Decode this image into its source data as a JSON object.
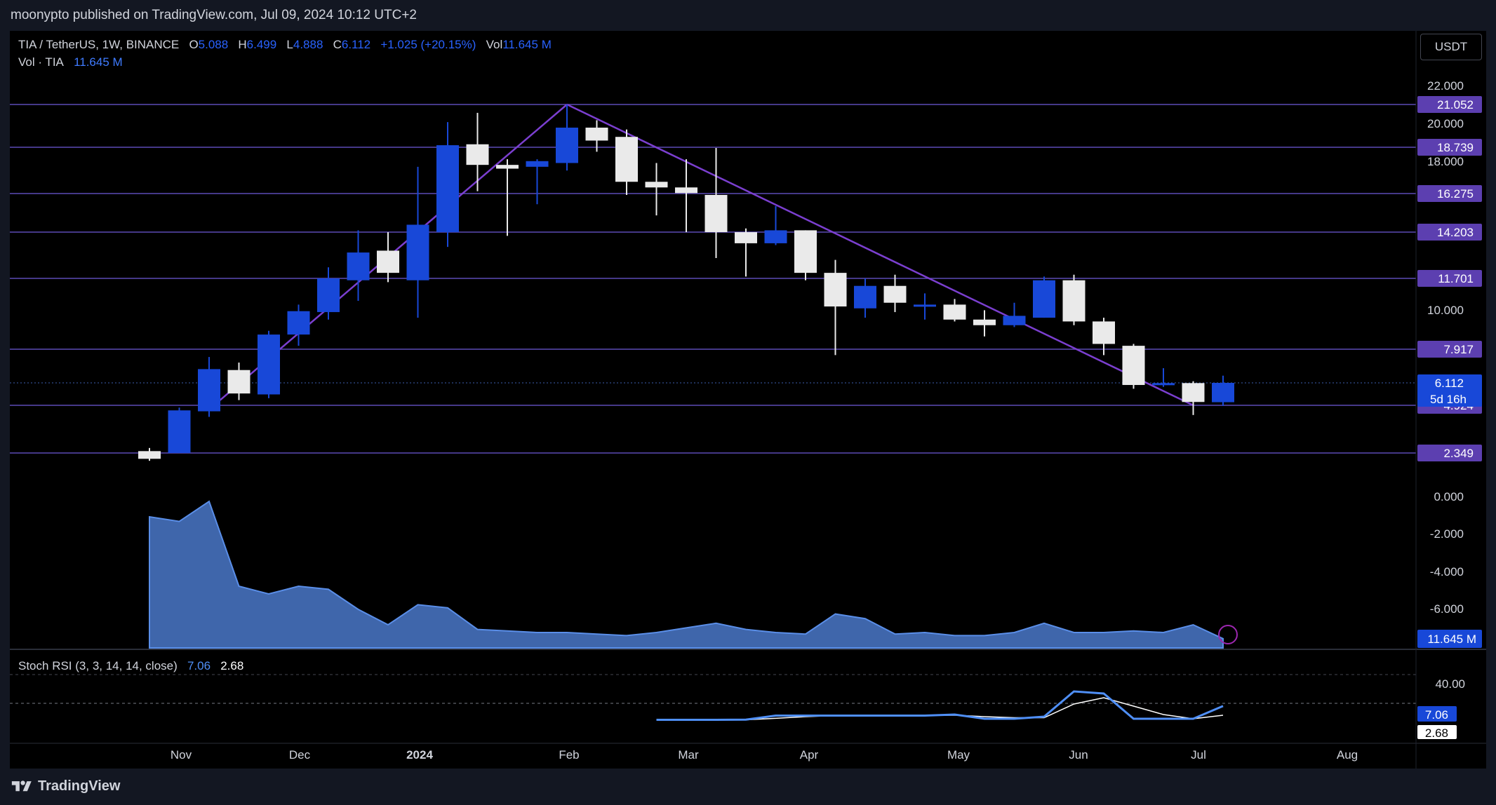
{
  "header": {
    "publisher_line": "moonypto published on TradingView.com, Jul 09, 2024 10:12 UTC+2"
  },
  "legend": {
    "symbol": "TIA / TetherUS, 1W, BINANCE",
    "o_label": "O",
    "o_value": "5.088",
    "h_label": "H",
    "h_value": "6.499",
    "l_label": "L",
    "l_value": "4.888",
    "c_label": "C",
    "c_value": "6.112",
    "change": "+1.025 (+20.15%)",
    "vol_label": "Vol",
    "vol_value": "11.645 M",
    "vol_series_label": "Vol · TIA",
    "vol_series_value": "11.645 M"
  },
  "currency_button": "USDT",
  "stoch_legend": {
    "label": "Stoch RSI (3, 3, 14, 14, close)",
    "k_value": "7.06",
    "d_value": "2.68"
  },
  "footer": {
    "brand": "TradingView"
  },
  "colors": {
    "up": "#1848d8",
    "down": "#eaeaea",
    "level_line": "#5c4bb5",
    "trend_line": "#7b3fd0",
    "price_badge": "#5c3fb0",
    "volume_fill": "#4a78c9",
    "k_line": "#4f8ff7",
    "d_line": "#ffffff"
  },
  "chart_data": [
    {
      "type": "candlestick",
      "name": "TIA / TetherUS 1W",
      "y_ticks": [
        "22.000",
        "20.000",
        "18.000",
        "10.000",
        "0.000",
        "-2.000",
        "-4.000",
        "-6.000"
      ],
      "x_ticks": [
        "Nov",
        "Dec",
        "2024",
        "Feb",
        "Mar",
        "Apr",
        "May",
        "Jun",
        "Jul",
        "Aug"
      ],
      "horizontal_levels": [
        21.052,
        18.739,
        16.275,
        14.203,
        11.701,
        7.917,
        4.924,
        2.349
      ],
      "level_labels": [
        "21.052",
        "18.739",
        "16.275",
        "14.203",
        "11.701",
        "7.917",
        "4.924",
        "2.349"
      ],
      "last_price_label": "6.112",
      "countdown_label": "5d 16h",
      "trendlines": [
        {
          "from": [
            "2023-11-13",
            4.7
          ],
          "to": [
            "2024-02-05",
            21.052
          ]
        },
        {
          "from": [
            "2024-02-05",
            21.052
          ],
          "to": [
            "2024-07-01",
            4.924
          ]
        }
      ],
      "candles": [
        {
          "date": "2023-10-30",
          "o": 2.45,
          "h": 2.62,
          "l": 1.92,
          "c": 2.03
        },
        {
          "date": "2023-11-06",
          "o": 2.35,
          "h": 4.8,
          "l": 2.35,
          "c": 4.65
        },
        {
          "date": "2023-11-13",
          "o": 4.6,
          "h": 7.5,
          "l": 4.3,
          "c": 6.85
        },
        {
          "date": "2023-11-20",
          "o": 6.8,
          "h": 7.2,
          "l": 5.2,
          "c": 5.55
        },
        {
          "date": "2023-11-27",
          "o": 5.5,
          "h": 8.9,
          "l": 5.3,
          "c": 8.7
        },
        {
          "date": "2023-12-04",
          "o": 8.7,
          "h": 10.3,
          "l": 8.1,
          "c": 9.95
        },
        {
          "date": "2023-12-11",
          "o": 9.9,
          "h": 12.3,
          "l": 9.5,
          "c": 11.7
        },
        {
          "date": "2023-12-18",
          "o": 11.6,
          "h": 14.3,
          "l": 10.5,
          "c": 13.1
        },
        {
          "date": "2023-12-25",
          "o": 13.2,
          "h": 14.2,
          "l": 11.5,
          "c": 12.0
        },
        {
          "date": "2024-01-01",
          "o": 11.6,
          "h": 17.7,
          "l": 9.6,
          "c": 14.6
        },
        {
          "date": "2024-01-08",
          "o": 14.2,
          "h": 20.1,
          "l": 13.4,
          "c": 18.85
        },
        {
          "date": "2024-01-15",
          "o": 18.9,
          "h": 20.6,
          "l": 16.4,
          "c": 17.8
        },
        {
          "date": "2024-01-22",
          "o": 17.8,
          "h": 18.1,
          "l": 14.0,
          "c": 17.6
        },
        {
          "date": "2024-01-29",
          "o": 17.7,
          "h": 18.1,
          "l": 15.7,
          "c": 18.0
        },
        {
          "date": "2024-02-05",
          "o": 17.9,
          "h": 21.052,
          "l": 17.5,
          "c": 19.8
        },
        {
          "date": "2024-02-12",
          "o": 19.8,
          "h": 20.2,
          "l": 18.5,
          "c": 19.1
        },
        {
          "date": "2024-02-19",
          "o": 19.3,
          "h": 19.7,
          "l": 16.2,
          "c": 16.9
        },
        {
          "date": "2024-02-26",
          "o": 16.9,
          "h": 17.9,
          "l": 15.1,
          "c": 16.6
        },
        {
          "date": "2024-03-04",
          "o": 16.6,
          "h": 18.1,
          "l": 14.2,
          "c": 16.3
        },
        {
          "date": "2024-03-11",
          "o": 16.2,
          "h": 18.7,
          "l": 12.8,
          "c": 14.2
        },
        {
          "date": "2024-03-18",
          "o": 14.2,
          "h": 14.4,
          "l": 11.8,
          "c": 13.6
        },
        {
          "date": "2024-03-25",
          "o": 13.6,
          "h": 15.6,
          "l": 13.5,
          "c": 14.3
        },
        {
          "date": "2024-04-01",
          "o": 14.3,
          "h": 14.3,
          "l": 11.6,
          "c": 12.0
        },
        {
          "date": "2024-04-08",
          "o": 12.0,
          "h": 12.7,
          "l": 7.6,
          "c": 10.2
        },
        {
          "date": "2024-04-15",
          "o": 10.1,
          "h": 11.7,
          "l": 9.6,
          "c": 11.3
        },
        {
          "date": "2024-04-22",
          "o": 11.3,
          "h": 11.9,
          "l": 9.9,
          "c": 10.4
        },
        {
          "date": "2024-04-29",
          "o": 10.2,
          "h": 10.9,
          "l": 9.5,
          "c": 10.3
        },
        {
          "date": "2024-05-06",
          "o": 10.3,
          "h": 10.6,
          "l": 9.4,
          "c": 9.5
        },
        {
          "date": "2024-05-13",
          "o": 9.5,
          "h": 10.0,
          "l": 8.6,
          "c": 9.2
        },
        {
          "date": "2024-05-20",
          "o": 9.2,
          "h": 10.4,
          "l": 9.1,
          "c": 9.7
        },
        {
          "date": "2024-05-27",
          "o": 9.6,
          "h": 11.8,
          "l": 9.6,
          "c": 11.6
        },
        {
          "date": "2024-06-03",
          "o": 11.6,
          "h": 11.9,
          "l": 9.2,
          "c": 9.4
        },
        {
          "date": "2024-06-10",
          "o": 9.4,
          "h": 9.6,
          "l": 7.6,
          "c": 8.2
        },
        {
          "date": "2024-06-17",
          "o": 8.1,
          "h": 8.2,
          "l": 5.8,
          "c": 6.0
        },
        {
          "date": "2024-06-24",
          "o": 6.0,
          "h": 6.9,
          "l": 5.9,
          "c": 6.1
        },
        {
          "date": "2024-07-01",
          "o": 6.1,
          "h": 6.2,
          "l": 4.4,
          "c": 5.1
        },
        {
          "date": "2024-07-08",
          "o": 5.088,
          "h": 6.499,
          "l": 4.888,
          "c": 6.112
        }
      ]
    },
    {
      "type": "area",
      "name": "Vol · TIA",
      "last_value_label": "11.645 M",
      "values_relative": [
        0.85,
        0.82,
        0.95,
        0.4,
        0.35,
        0.4,
        0.38,
        0.25,
        0.15,
        0.28,
        0.26,
        0.12,
        0.11,
        0.1,
        0.1,
        0.09,
        0.08,
        0.1,
        0.13,
        0.16,
        0.12,
        0.1,
        0.09,
        0.22,
        0.19,
        0.09,
        0.1,
        0.08,
        0.08,
        0.1,
        0.16,
        0.1,
        0.1,
        0.11,
        0.1,
        0.15,
        0.06
      ]
    },
    {
      "type": "line",
      "name": "Stoch RSI (3, 3, 14, 14, close)",
      "y_ticks": [
        "40.00"
      ],
      "y_range": [
        0,
        60
      ],
      "k_label": "7.06",
      "d_label": "2.68",
      "dates": [
        "2024-02-26",
        "2024-03-04",
        "2024-03-11",
        "2024-03-18",
        "2024-03-25",
        "2024-04-01",
        "2024-04-08",
        "2024-04-15",
        "2024-04-22",
        "2024-04-29",
        "2024-05-06",
        "2024-05-13",
        "2024-05-20",
        "2024-05-27",
        "2024-06-03",
        "2024-06-10",
        "2024-06-17",
        "2024-06-24",
        "2024-07-01",
        "2024-07-08"
      ],
      "k": [
        0.5,
        0.5,
        0.5,
        0.6,
        2.5,
        2.5,
        2.5,
        2.5,
        2.5,
        2.5,
        3.0,
        1.0,
        1.0,
        2.0,
        14.0,
        13.0,
        1.0,
        1.0,
        1.0,
        7.06
      ],
      "d": [
        0.5,
        0.5,
        0.5,
        0.5,
        1.2,
        2.0,
        2.5,
        2.5,
        2.5,
        2.5,
        2.7,
        2.0,
        1.5,
        1.5,
        8.0,
        11.0,
        7.0,
        3.0,
        1.0,
        2.68
      ]
    }
  ]
}
